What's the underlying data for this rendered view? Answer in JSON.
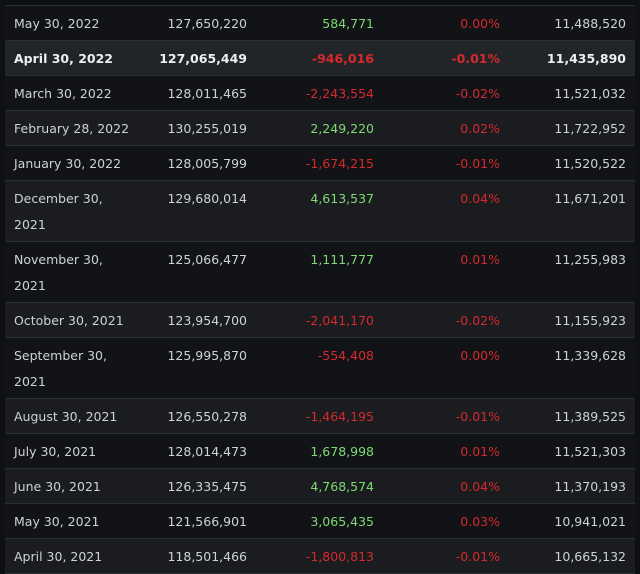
{
  "colors": {
    "positive": "#7fd874",
    "negative": "#d42a2e"
  },
  "rows": [
    {
      "date": "May 30, 2022",
      "total": "127,650,220",
      "change": "584,771",
      "dir": "pos",
      "pct": "0.00%",
      "value": "11,488,520"
    },
    {
      "date": "April 30, 2022",
      "total": "127,065,449",
      "change": "-946,016",
      "dir": "neg",
      "pct": "-0.01%",
      "value": "11,435,890"
    },
    {
      "date": "March 30, 2022",
      "total": "128,011,465",
      "change": "-2,243,554",
      "dir": "neg",
      "pct": "-0.02%",
      "value": "11,521,032"
    },
    {
      "date": "February 28, 2022",
      "total": "130,255,019",
      "change": "2,249,220",
      "dir": "pos",
      "pct": "0.02%",
      "value": "11,722,952"
    },
    {
      "date": "January 30, 2022",
      "total": "128,005,799",
      "change": "-1,674,215",
      "dir": "neg",
      "pct": "-0.01%",
      "value": "11,520,522"
    },
    {
      "date": "December 30, 2021",
      "total": "129,680,014",
      "change": "4,613,537",
      "dir": "pos",
      "pct": "0.04%",
      "value": "11,671,201"
    },
    {
      "date": "November 30, 2021",
      "total": "125,066,477",
      "change": "1,111,777",
      "dir": "pos",
      "pct": "0.01%",
      "value": "11,255,983"
    },
    {
      "date": "October 30, 2021",
      "total": "123,954,700",
      "change": "-2,041,170",
      "dir": "neg",
      "pct": "-0.02%",
      "value": "11,155,923"
    },
    {
      "date": "September 30, 2021",
      "total": "125,995,870",
      "change": "-554,408",
      "dir": "neg",
      "pct": "0.00%",
      "value": "11,339,628"
    },
    {
      "date": "August 30, 2021",
      "total": "126,550,278",
      "change": "-1,464,195",
      "dir": "neg",
      "pct": "-0.01%",
      "value": "11,389,525"
    },
    {
      "date": "July 30, 2021",
      "total": "128,014,473",
      "change": "1,678,998",
      "dir": "pos",
      "pct": "0.01%",
      "value": "11,521,303"
    },
    {
      "date": "June 30, 2021",
      "total": "126,335,475",
      "change": "4,768,574",
      "dir": "pos",
      "pct": "0.04%",
      "value": "11,370,193"
    },
    {
      "date": "May 30, 2021",
      "total": "121,566,901",
      "change": "3,065,435",
      "dir": "pos",
      "pct": "0.03%",
      "value": "10,941,021"
    },
    {
      "date": "April 30, 2021",
      "total": "118,501,466",
      "change": "-1,800,813",
      "dir": "neg",
      "pct": "-0.01%",
      "value": "10,665,132"
    }
  ]
}
